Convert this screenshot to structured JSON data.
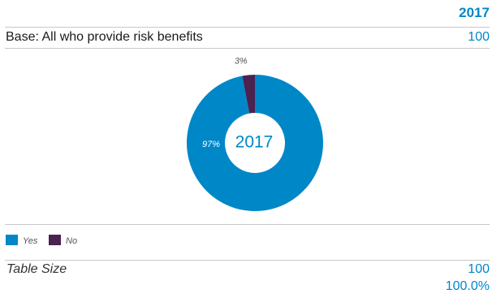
{
  "header": {
    "year": "2017"
  },
  "base": {
    "label": "Base: All who provide risk benefits",
    "value": "100"
  },
  "chart_data": {
    "type": "pie",
    "center_label": "2017",
    "categories": [
      "Yes",
      "No"
    ],
    "values": [
      97,
      3
    ],
    "value_labels": [
      "97%",
      "3%"
    ],
    "colors": [
      "#0087c8",
      "#4b2250"
    ],
    "legend_position": "bottom-left"
  },
  "legend": {
    "items": [
      {
        "label": "Yes",
        "color": "#0087c8"
      },
      {
        "label": "No",
        "color": "#4b2250"
      }
    ]
  },
  "table_size": {
    "label": "Table Size",
    "value": "100",
    "percent": "100.0%"
  }
}
